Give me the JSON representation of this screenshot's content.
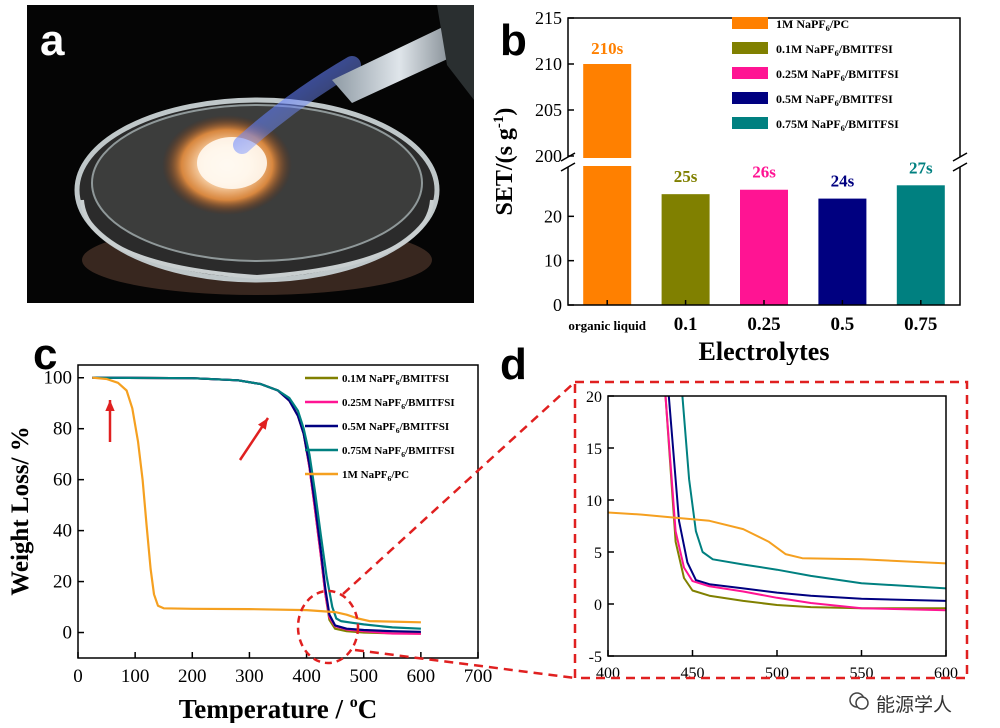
{
  "panel_labels": {
    "a": "a",
    "b": "b",
    "c": "c",
    "d": "d"
  },
  "watermark": "能源学人",
  "chart_data": [
    {
      "panel": "b",
      "type": "bar",
      "ylabel": "SET/(s g",
      "ylabel_sup": "-1",
      "ylabel_end": ")",
      "xlabel": "Electrolytes",
      "categories": [
        "organic liquid",
        "0.1",
        "0.25",
        "0.5",
        "0.75"
      ],
      "values": [
        210,
        25,
        26,
        24,
        27
      ],
      "value_labels": [
        "210s",
        "25s",
        "26s",
        "24s",
        "27s"
      ],
      "colors": [
        "#ff8000",
        "#808000",
        "#ff1493",
        "#000080",
        "#008080"
      ],
      "y_lower_range": [
        0,
        30
      ],
      "y_upper_range": [
        200,
        215
      ],
      "y_lower_ticks": [
        "0",
        "10",
        "20"
      ],
      "y_upper_ticks": [
        "200",
        "205",
        "210",
        "215"
      ],
      "legend": [
        "1M NaPF6/PC",
        "0.1M NaPF6/BMITFSI",
        "0.25M NaPF6/BMITFSI",
        "0.5M NaPF6/BMITFSI",
        "0.75M NaPF6/BMITFSI"
      ],
      "legend_placement": "top-right"
    },
    {
      "panel": "c",
      "type": "line",
      "xlabel": "Temperature /",
      "xlabel_unit": "C",
      "xlabel_sup": "o",
      "ylabel": "Weight Loss/ %",
      "xlim": [
        0,
        700
      ],
      "ylim": [
        -10,
        105
      ],
      "xticks": [
        "0",
        "100",
        "200",
        "300",
        "400",
        "500",
        "600",
        "700"
      ],
      "yticks": [
        "0",
        "20",
        "40",
        "60",
        "80",
        "100"
      ],
      "legend_placement": "top-right",
      "series": [
        {
          "name": "0.1M NaPF6/BMITFSI",
          "color": "#808000",
          "points": [
            [
              25,
              100
            ],
            [
              200,
              99.8
            ],
            [
              280,
              99
            ],
            [
              320,
              97.5
            ],
            [
              350,
              95
            ],
            [
              370,
              91
            ],
            [
              385,
              85
            ],
            [
              395,
              78
            ],
            [
              405,
              65
            ],
            [
              415,
              48
            ],
            [
              425,
              30
            ],
            [
              433,
              15
            ],
            [
              440,
              5
            ],
            [
              450,
              1.5
            ],
            [
              470,
              0.5
            ],
            [
              500,
              0
            ],
            [
              550,
              -0.3
            ],
            [
              600,
              -0.4
            ]
          ]
        },
        {
          "name": "0.25M NaPF6/BMITFSI",
          "color": "#ff1493",
          "points": [
            [
              25,
              100
            ],
            [
              200,
              99.8
            ],
            [
              280,
              99
            ],
            [
              320,
              97.5
            ],
            [
              350,
              95
            ],
            [
              370,
              91
            ],
            [
              385,
              85
            ],
            [
              395,
              78
            ],
            [
              405,
              65
            ],
            [
              415,
              48
            ],
            [
              425,
              30
            ],
            [
              433,
              15
            ],
            [
              440,
              6
            ],
            [
              450,
              2.5
            ],
            [
              470,
              1.2
            ],
            [
              500,
              0.5
            ],
            [
              550,
              -0.4
            ],
            [
              600,
              -0.5
            ]
          ]
        },
        {
          "name": "0.5M NaPF6/BMITFSI",
          "color": "#000080",
          "points": [
            [
              25,
              100
            ],
            [
              200,
              99.8
            ],
            [
              280,
              99
            ],
            [
              320,
              97.5
            ],
            [
              350,
              95
            ],
            [
              370,
              91
            ],
            [
              385,
              85
            ],
            [
              395,
              78
            ],
            [
              405,
              66
            ],
            [
              415,
              50
            ],
            [
              425,
              32
            ],
            [
              433,
              17
            ],
            [
              440,
              7
            ],
            [
              450,
              2.8
            ],
            [
              470,
              1.5
            ],
            [
              500,
              1
            ],
            [
              550,
              0.5
            ],
            [
              600,
              0.3
            ]
          ]
        },
        {
          "name": "0.75M NaPF6/BMITFSI",
          "color": "#008080",
          "points": [
            [
              25,
              100
            ],
            [
              200,
              99.8
            ],
            [
              280,
              99
            ],
            [
              320,
              97.5
            ],
            [
              350,
              95
            ],
            [
              370,
              92
            ],
            [
              385,
              87
            ],
            [
              395,
              80
            ],
            [
              405,
              70
            ],
            [
              415,
              55
            ],
            [
              425,
              38
            ],
            [
              435,
              22
            ],
            [
              445,
              10
            ],
            [
              452,
              5.5
            ],
            [
              460,
              4.5
            ],
            [
              480,
              3.8
            ],
            [
              500,
              3.2
            ],
            [
              550,
              2
            ],
            [
              600,
              1.5
            ]
          ]
        },
        {
          "name": "1M NaPF6/PC",
          "color": "#f5a020",
          "points": [
            [
              25,
              100
            ],
            [
              50,
              99.5
            ],
            [
              70,
              98
            ],
            [
              85,
              95
            ],
            [
              95,
              88
            ],
            [
              105,
              75
            ],
            [
              113,
              60
            ],
            [
              120,
              42
            ],
            [
              127,
              25
            ],
            [
              133,
              15
            ],
            [
              140,
              10.5
            ],
            [
              150,
              9.5
            ],
            [
              200,
              9.3
            ],
            [
              300,
              9.2
            ],
            [
              400,
              8.8
            ],
            [
              450,
              8
            ],
            [
              470,
              7
            ],
            [
              490,
              5.5
            ],
            [
              510,
              4.5
            ],
            [
              550,
              4.3
            ],
            [
              600,
              4
            ]
          ]
        }
      ],
      "arrows": [
        {
          "label": "",
          "at": [
            60,
            90
          ]
        },
        {
          "label": "",
          "at": [
            330,
            90
          ]
        }
      ]
    },
    {
      "panel": "d",
      "type": "line",
      "xlim": [
        400,
        600
      ],
      "ylim": [
        -5,
        20
      ],
      "xticks": [
        "400",
        "450",
        "500",
        "550",
        "600"
      ],
      "yticks": [
        "-5",
        "0",
        "5",
        "10",
        "15",
        "20"
      ],
      "series": [
        {
          "name": "0.1M NaPF6/BMITFSI",
          "color": "#808000",
          "points": [
            [
              434,
              20
            ],
            [
              440,
              6
            ],
            [
              445,
              2.5
            ],
            [
              450,
              1.3
            ],
            [
              460,
              0.8
            ],
            [
              480,
              0.3
            ],
            [
              500,
              -0.1
            ],
            [
              520,
              -0.3
            ],
            [
              550,
              -0.4
            ],
            [
              600,
              -0.4
            ]
          ]
        },
        {
          "name": "0.25M NaPF6/BMITFSI",
          "color": "#ff1493",
          "points": [
            [
              434,
              20
            ],
            [
              440,
              7
            ],
            [
              445,
              3.5
            ],
            [
              450,
              2.2
            ],
            [
              460,
              1.7
            ],
            [
              480,
              1.2
            ],
            [
              500,
              0.6
            ],
            [
              520,
              0.1
            ],
            [
              550,
              -0.4
            ],
            [
              600,
              -0.6
            ]
          ]
        },
        {
          "name": "0.5M NaPF6/BMITFSI",
          "color": "#000080",
          "points": [
            [
              436,
              20
            ],
            [
              442,
              8
            ],
            [
              447,
              4
            ],
            [
              452,
              2.3
            ],
            [
              460,
              1.9
            ],
            [
              480,
              1.5
            ],
            [
              500,
              1.1
            ],
            [
              520,
              0.8
            ],
            [
              550,
              0.5
            ],
            [
              600,
              0.3
            ]
          ]
        },
        {
          "name": "0.75M NaPF6/BMITFSI",
          "color": "#008080",
          "points": [
            [
              444,
              20
            ],
            [
              448,
              12
            ],
            [
              452,
              7
            ],
            [
              456,
              5
            ],
            [
              462,
              4.3
            ],
            [
              480,
              3.8
            ],
            [
              500,
              3.3
            ],
            [
              520,
              2.7
            ],
            [
              550,
              2
            ],
            [
              600,
              1.5
            ]
          ]
        },
        {
          "name": "1M NaPF6/PC",
          "color": "#f5a020",
          "points": [
            [
              400,
              8.8
            ],
            [
              420,
              8.6
            ],
            [
              440,
              8.3
            ],
            [
              460,
              8
            ],
            [
              480,
              7.2
            ],
            [
              495,
              6
            ],
            [
              505,
              4.8
            ],
            [
              515,
              4.4
            ],
            [
              550,
              4.3
            ],
            [
              600,
              3.9
            ]
          ]
        }
      ]
    }
  ]
}
